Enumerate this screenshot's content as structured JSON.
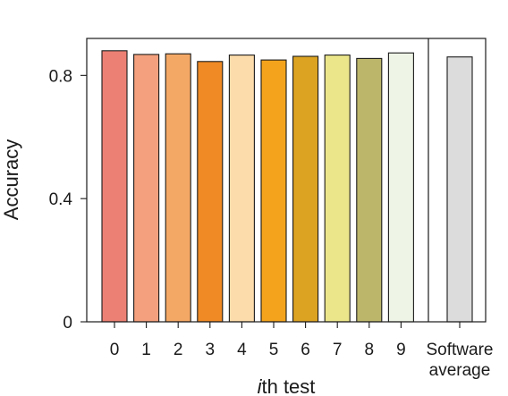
{
  "chart_data": {
    "type": "bar",
    "title": "",
    "xlabel_italic": "i",
    "xlabel_rest": "th test",
    "ylabel": "Accuracy",
    "ylim": [
      0,
      0.92
    ],
    "yticks": [
      {
        "value": 0,
        "label": "0"
      },
      {
        "value": 0.4,
        "label": "0.4"
      },
      {
        "value": 0.8,
        "label": "0.8"
      }
    ],
    "categories": [
      "0",
      "1",
      "2",
      "3",
      "4",
      "5",
      "6",
      "7",
      "8",
      "9"
    ],
    "values": [
      0.88,
      0.868,
      0.87,
      0.845,
      0.866,
      0.85,
      0.862,
      0.866,
      0.855,
      0.873
    ],
    "colors": [
      "#ec8074",
      "#f4a07e",
      "#f4a865",
      "#f08a25",
      "#fddcab",
      "#f3a41c",
      "#dca323",
      "#ece68b",
      "#bcb66b",
      "#eef5e6"
    ],
    "reference": {
      "label_lines": [
        "Software",
        "average"
      ],
      "value": 0.86,
      "color": "#dcdcdc"
    },
    "grid": false,
    "legend": "none"
  }
}
